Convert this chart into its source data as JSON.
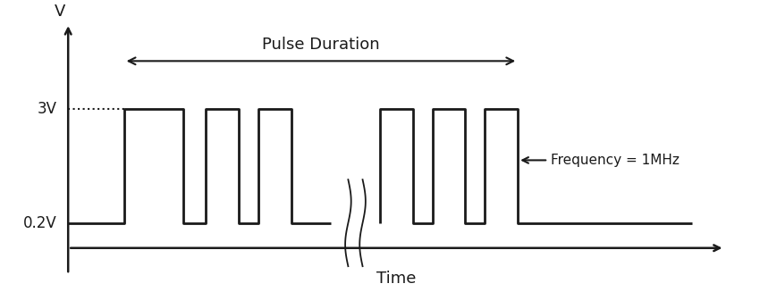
{
  "background_color": "#ffffff",
  "line_color": "#1a1a1a",
  "low_voltage": 0.0,
  "high_voltage": 1.0,
  "ylabel": "V",
  "xlabel": "Time",
  "pulse_duration_label": "Pulse Duration",
  "frequency_label": "Frequency = 1MHz",
  "dashed_label": "3V",
  "low_label": "0.2V",
  "figsize": [
    8.5,
    3.27
  ],
  "dpi": 100,
  "ylim": [
    -0.55,
    1.85
  ],
  "xlim": [
    -0.5,
    22.5
  ]
}
